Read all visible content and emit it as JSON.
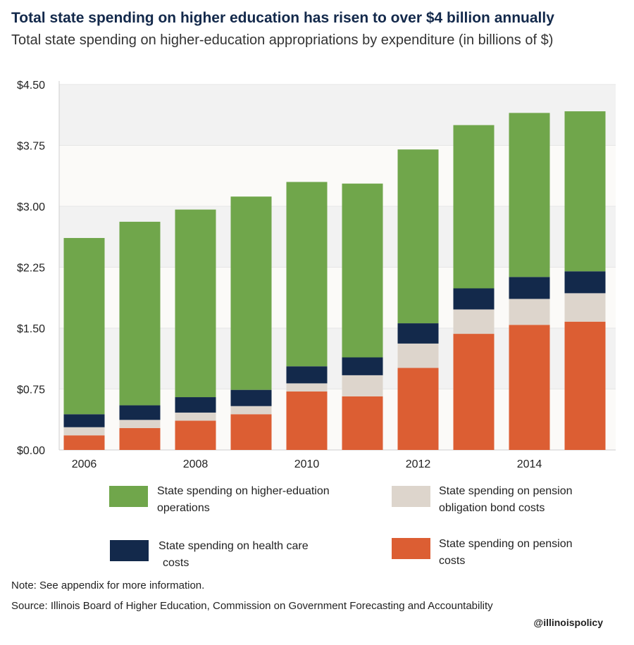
{
  "title": "Total state spending on higher education has risen to over $4 billion annually",
  "subtitle": "Total state spending on higher-education appropriations by expenditure (in billions of $)",
  "chart_data": {
    "type": "bar",
    "stacked": true,
    "y_ticks": [
      "$0.00",
      "$0.75",
      "$1.50",
      "$2.25",
      "$3.00",
      "$3.75",
      "$4.50"
    ],
    "ylim": [
      0,
      4.5
    ],
    "x_tick_labels": [
      "2006",
      "",
      "2008",
      "",
      "2010",
      "",
      "2012",
      "",
      "2014",
      ""
    ],
    "categories": [
      "2006",
      "2007",
      "2008",
      "2009",
      "2010",
      "2011",
      "2012",
      "2013",
      "2014",
      "2015"
    ],
    "series": [
      {
        "name": "State spending on pension costs",
        "color": "#dc5e33",
        "values": [
          0.18,
          0.27,
          0.36,
          0.44,
          0.72,
          0.66,
          1.01,
          1.43,
          1.54,
          1.58
        ]
      },
      {
        "name": "State spending on pension obligation bond costs",
        "color": "#ddd5cc",
        "values": [
          0.1,
          0.1,
          0.1,
          0.1,
          0.1,
          0.26,
          0.3,
          0.3,
          0.32,
          0.35
        ]
      },
      {
        "name": "State spending on health care costs",
        "color": "#13294b",
        "values": [
          0.16,
          0.18,
          0.19,
          0.2,
          0.21,
          0.22,
          0.25,
          0.26,
          0.27,
          0.27
        ]
      },
      {
        "name": "State spending on higher-eduation operations",
        "color": "#70a64b",
        "values": [
          2.17,
          2.26,
          2.31,
          2.38,
          2.27,
          2.14,
          2.14,
          2.01,
          2.02,
          1.97
        ]
      }
    ],
    "grid": true,
    "legend_position": "bottom"
  },
  "legend": {
    "operations_line1": "State spending on higher-eduation",
    "operations_line2": "operations",
    "pob_line1": "State spending on pension",
    "pob_line2": "obligation bond costs",
    "health_line1": "State spending on health care",
    "health_line2": "costs",
    "pension_line1": "State spending on pension",
    "pension_line2": "costs"
  },
  "note": "Note: See appendix for more information.",
  "source": "Source: Illinois Board of Higher Education, Commission on Government Forecasting and Accountability",
  "handle": "@illinoispolicy"
}
